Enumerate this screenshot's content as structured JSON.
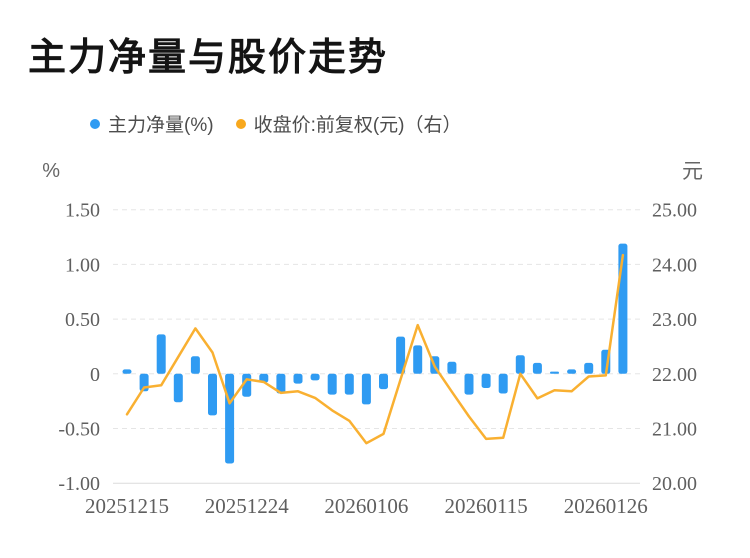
{
  "title": "主力净量与股价走势",
  "legend": [
    {
      "label": "主力净量(%)",
      "color": "#2f9bf2"
    },
    {
      "label": "收盘价:前复权(元)（右）",
      "color": "#f8a81d"
    }
  ],
  "left_axis": {
    "unit": "%",
    "ticks": [
      "1.50",
      "1.00",
      "0.50",
      "0",
      "-0.50",
      "-1.00"
    ]
  },
  "right_axis": {
    "unit": "元",
    "ticks": [
      "25.00",
      "24.00",
      "23.00",
      "22.00",
      "21.00",
      "20.00"
    ]
  },
  "colors": {
    "bar": "#2f9bf2",
    "line": "#f9b031",
    "grid": "#e5e5e5",
    "axis_line": "#dcdcdc",
    "tick_text": "#5f5f5f",
    "title_text": "#141414",
    "legend_text": "#4d4d4d",
    "background": "#ffffff"
  },
  "chart_data": {
    "type": "bar+line",
    "title": "主力净量与股价走势",
    "x": [
      "20251215",
      "20251216",
      "20251217",
      "20251218",
      "20251219",
      "20251222",
      "20251223",
      "20251224",
      "20251225",
      "20251226",
      "20251229",
      "20251230",
      "20251231",
      "20260105",
      "20260106",
      "20260107",
      "20260108",
      "20260109",
      "20260112",
      "20260113",
      "20260114",
      "20260115",
      "20260116",
      "20260119",
      "20260120",
      "20260121",
      "20260122",
      "20260123",
      "20260126",
      "20260127"
    ],
    "x_tick_labels": [
      "20251215",
      "20251224",
      "20260106",
      "20260115",
      "20260126"
    ],
    "x_tick_indices": [
      0,
      7,
      14,
      21,
      28
    ],
    "series": [
      {
        "name": "主力净量(%)",
        "type": "bar",
        "axis": "left",
        "values": [
          0.04,
          -0.16,
          0.36,
          -0.26,
          0.16,
          -0.38,
          -0.82,
          -0.21,
          -0.08,
          -0.18,
          -0.09,
          -0.06,
          -0.19,
          -0.19,
          -0.28,
          -0.14,
          0.34,
          0.26,
          0.16,
          0.11,
          -0.19,
          -0.13,
          -0.18,
          0.17,
          0.1,
          0.02,
          0.04,
          0.1,
          0.22,
          1.19
        ]
      },
      {
        "name": "收盘价:前复权(元)（右）",
        "type": "line",
        "axis": "right",
        "values": [
          21.26,
          21.75,
          21.79,
          22.31,
          22.83,
          22.39,
          21.46,
          21.9,
          21.85,
          21.65,
          21.68,
          21.56,
          21.33,
          21.14,
          20.73,
          20.9,
          21.9,
          22.89,
          22.13,
          21.67,
          21.22,
          20.81,
          20.83,
          22.0,
          21.55,
          21.7,
          21.68,
          21.95,
          21.97,
          24.17
        ]
      }
    ],
    "left_ylabel": "%",
    "right_ylabel": "元",
    "left_ylim": [
      -1.0,
      1.5
    ],
    "right_ylim": [
      20.0,
      25.0
    ],
    "grid": "horizontal dashed",
    "legend_position": "top-left"
  }
}
